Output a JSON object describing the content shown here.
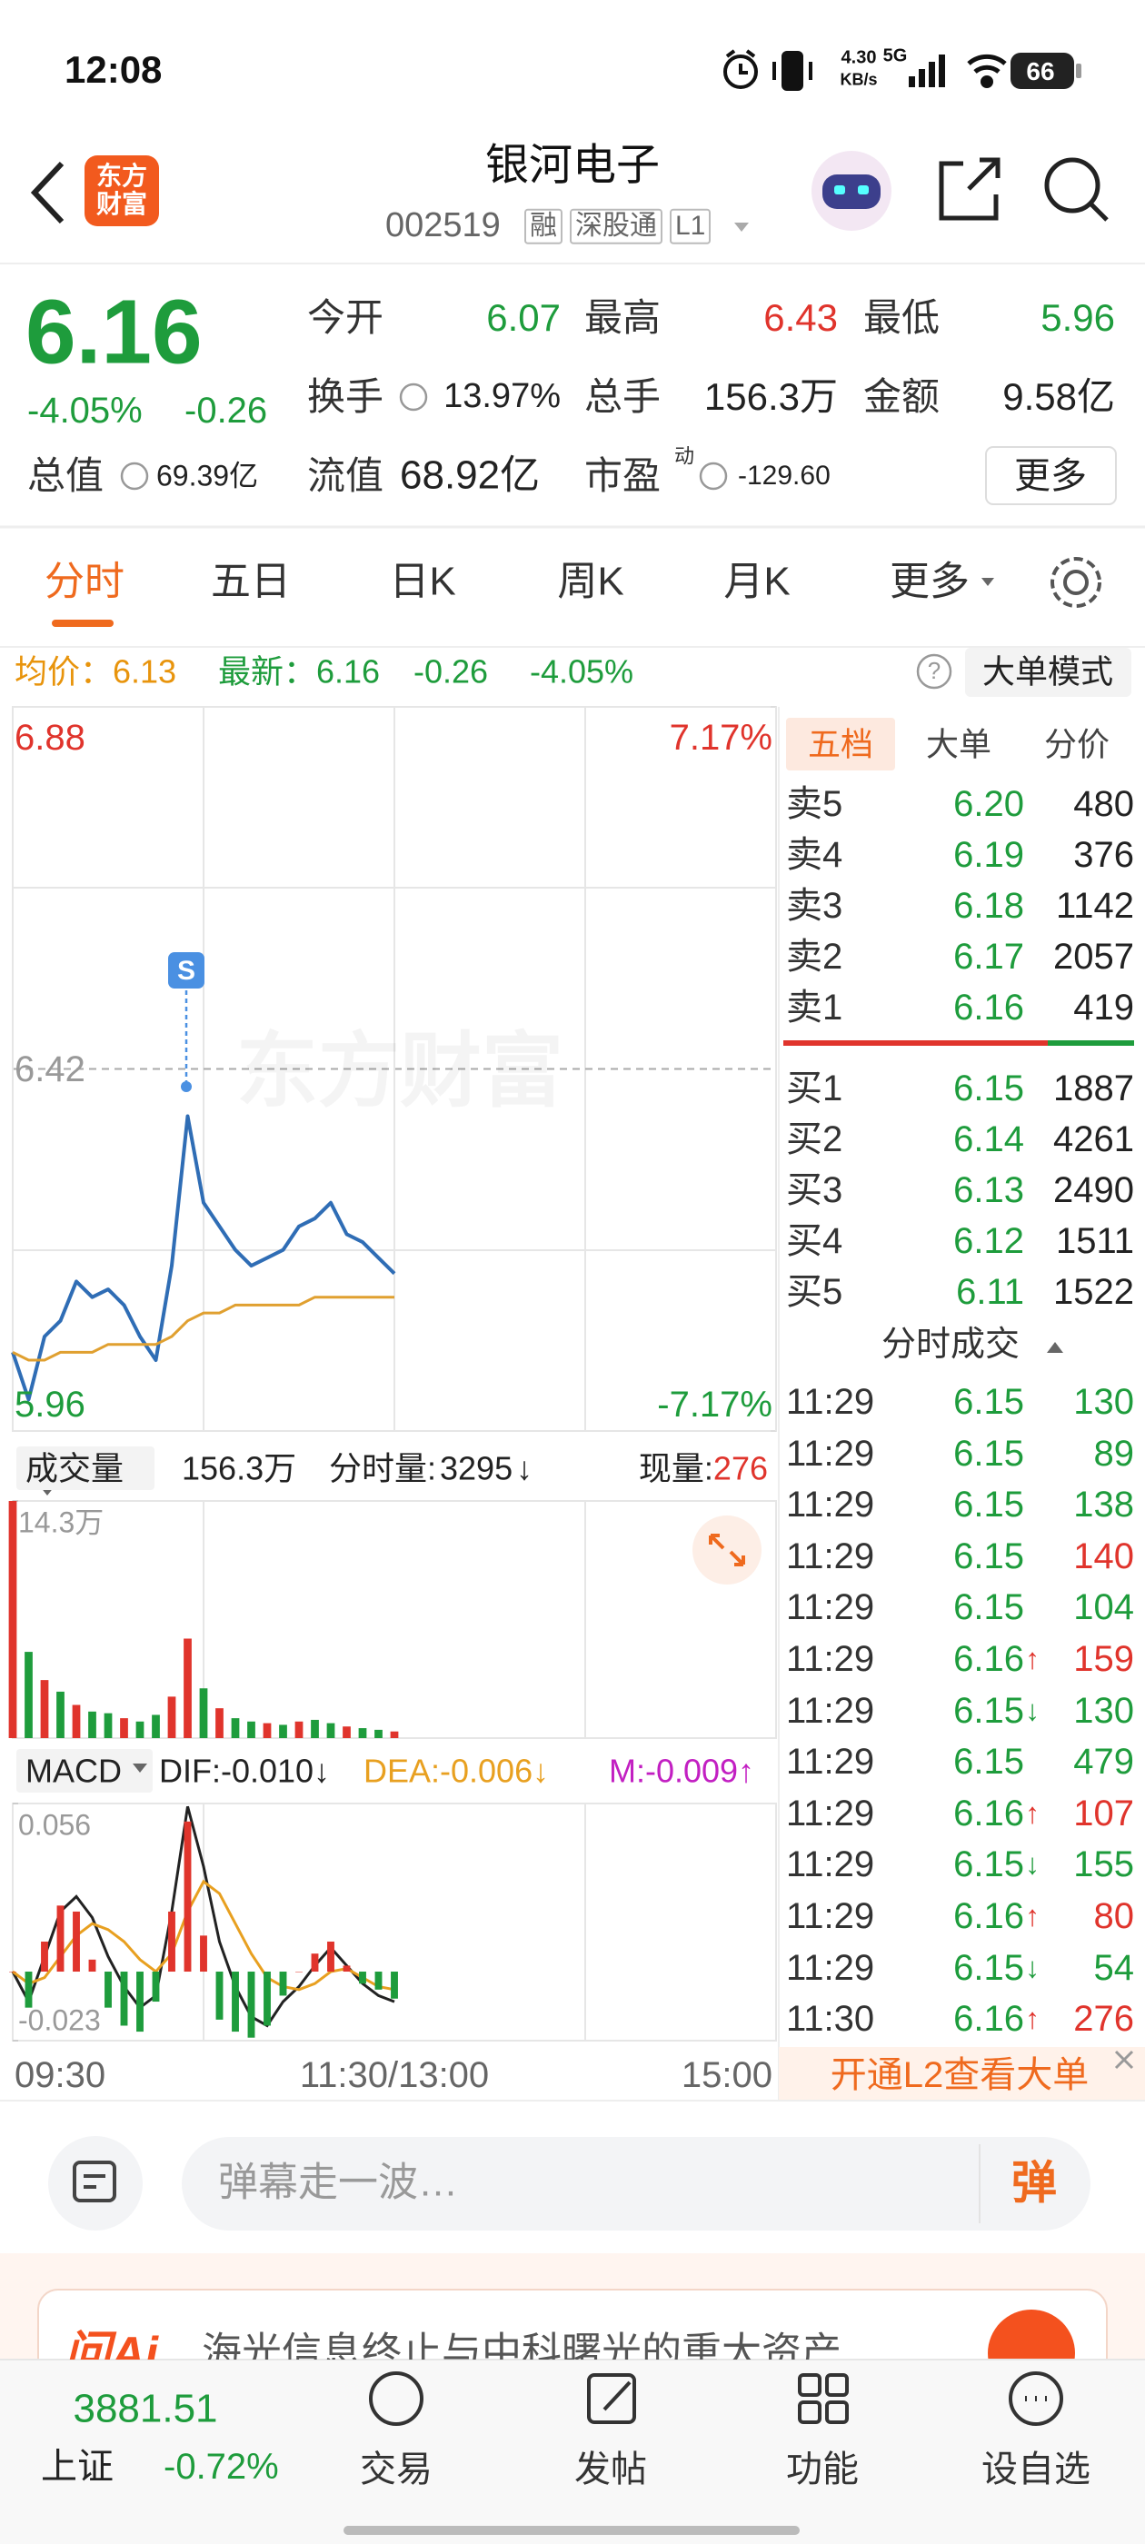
{
  "status_bar": {
    "time": "12:08",
    "speed": "4.30",
    "speed_unit": "KB/s",
    "network": "5G",
    "battery": "66"
  },
  "header": {
    "logo": "东方财富",
    "title": "银河电子",
    "code": "002519",
    "tags": [
      "融",
      "深股通",
      "L1"
    ]
  },
  "quote": {
    "price": "6.16",
    "change_pct": "-4.05%",
    "change": "-0.26",
    "open": {
      "label": "今开",
      "value": "6.07"
    },
    "high": {
      "label": "最高",
      "value": "6.43"
    },
    "low": {
      "label": "最低",
      "value": "5.96"
    },
    "turnover": {
      "label": "换手",
      "value": "13.97%"
    },
    "volume": {
      "label": "总手",
      "value": "156.3万"
    },
    "amount": {
      "label": "金额",
      "value": "9.58亿"
    },
    "market_cap": {
      "label": "总值",
      "value": "69.39亿"
    },
    "float_cap": {
      "label": "流值",
      "value": "68.92亿"
    },
    "pe": {
      "label": "市盈",
      "sup": "动",
      "value": "-129.60"
    },
    "more": "更多"
  },
  "tabs": [
    "分时",
    "五日",
    "日K",
    "周K",
    "月K",
    "更多"
  ],
  "info_bar": {
    "avg_label": "均价：",
    "avg": "6.13",
    "latest_label": "最新：",
    "latest": "6.16",
    "change": "-0.26",
    "change_pct": "-4.05%",
    "help": "?",
    "mode": "大单模式"
  },
  "chart_data": [
    {
      "type": "line",
      "watermark": "东方财富",
      "signal_marker": "S",
      "xlim": [
        0,
        48
      ],
      "xticks": [
        {
          "value": 0,
          "label": "09:30"
        },
        {
          "value": 24,
          "label": "11:30/13:00"
        },
        {
          "value": 48,
          "label": "15:00"
        }
      ],
      "ylim": [
        5.96,
        6.88
      ],
      "yticks": [
        6.88,
        6.42,
        5.96
      ],
      "y2lim": [
        -7.17,
        7.17
      ],
      "y2ticks": [
        {
          "value": 7.17,
          "label": "7.17%"
        },
        {
          "value": -7.17,
          "label": "-7.17%"
        }
      ],
      "up_color": "#e0342c",
      "down_color": "#1e9c3c",
      "series": [
        {
          "color": "#2f6db5",
          "values": [
            6.06,
            6.0,
            6.08,
            6.1,
            6.15,
            6.13,
            6.14,
            6.12,
            6.08,
            6.05,
            6.17,
            6.36,
            6.25,
            6.22,
            6.19,
            6.17,
            6.18,
            6.19,
            6.22,
            6.23,
            6.25,
            6.21,
            6.2,
            6.18,
            6.16,
            null,
            null,
            null,
            null,
            null,
            null,
            null,
            null,
            null,
            null,
            null,
            null,
            null,
            null,
            null,
            null,
            null,
            null,
            null,
            null,
            null,
            null,
            null,
            null
          ]
        },
        {
          "color": "#e0a030",
          "values": [
            6.06,
            6.05,
            6.05,
            6.06,
            6.06,
            6.06,
            6.07,
            6.07,
            6.07,
            6.07,
            6.08,
            6.1,
            6.11,
            6.11,
            6.12,
            6.12,
            6.12,
            6.12,
            6.12,
            6.13,
            6.13,
            6.13,
            6.13,
            6.13,
            6.13,
            null,
            null,
            null,
            null,
            null,
            null,
            null,
            null,
            null,
            null,
            null,
            null,
            null,
            null,
            null,
            null,
            null,
            null,
            null,
            null,
            null,
            null,
            null,
            null
          ]
        }
      ]
    },
    {
      "type": "bar",
      "title": "成交量",
      "total": "156.3万",
      "period_label": "分时量:",
      "period": "3295",
      "period_arrow": "↓",
      "current_label": "现量:",
      "current": "276",
      "ylim": [
        0,
        14.3
      ],
      "yticks": [
        {
          "value": 14.3,
          "label": "14.3万"
        }
      ],
      "values": [
        14.3,
        5.2,
        3.5,
        2.8,
        2.0,
        1.6,
        1.5,
        1.2,
        1.0,
        1.4,
        2.5,
        6.0,
        3.0,
        1.8,
        1.2,
        1.0,
        0.9,
        0.8,
        1.0,
        1.1,
        0.9,
        0.7,
        0.6,
        0.5,
        0.4
      ],
      "colors": [
        "#e0342c",
        "#1e9c3c",
        "#e0342c",
        "#1e9c3c",
        "#e0342c",
        "#1e9c3c",
        "#1e9c3c",
        "#e0342c",
        "#1e9c3c",
        "#1e9c3c",
        "#e0342c",
        "#e0342c",
        "#1e9c3c",
        "#e0342c",
        "#1e9c3c",
        "#1e9c3c",
        "#e0342c",
        "#1e9c3c",
        "#e0342c",
        "#1e9c3c",
        "#1e9c3c",
        "#e0342c",
        "#1e9c3c",
        "#1e9c3c",
        "#e0342c"
      ]
    },
    {
      "type": "macd",
      "title": "MACD",
      "ylim": [
        -0.023,
        0.056
      ],
      "yticks": [
        0.056,
        -0.023
      ],
      "series": [
        {
          "name": "DIF:-0.010↓",
          "color": "#222222",
          "values": [
            0.0,
            -0.01,
            0.005,
            0.02,
            0.025,
            0.018,
            0.005,
            -0.005,
            -0.012,
            -0.008,
            0.02,
            0.055,
            0.035,
            0.01,
            -0.005,
            -0.015,
            -0.018,
            -0.01,
            -0.005,
            0.002,
            0.008,
            0.002,
            -0.004,
            -0.008,
            -0.01
          ]
        },
        {
          "name": "DEA:-0.006↓",
          "color": "#e8a020",
          "values": [
            0.0,
            -0.004,
            -0.002,
            0.005,
            0.012,
            0.016,
            0.014,
            0.01,
            0.004,
            0.0,
            0.006,
            0.02,
            0.03,
            0.026,
            0.016,
            0.006,
            -0.002,
            -0.005,
            -0.006,
            -0.004,
            0.0,
            0.001,
            -0.002,
            -0.005,
            -0.006
          ]
        },
        {
          "name": "M:-0.009↑",
          "color": "#c21fc2",
          "up_color": "#e0342c",
          "down_color": "#1e9c3c",
          "values": [
            0.0,
            -0.012,
            0.01,
            0.022,
            0.02,
            0.004,
            -0.012,
            -0.018,
            -0.02,
            -0.01,
            0.02,
            0.05,
            0.012,
            -0.016,
            -0.02,
            -0.022,
            -0.018,
            -0.008,
            0.0,
            0.006,
            0.01,
            0.002,
            -0.004,
            -0.006,
            -0.009
          ]
        }
      ]
    }
  ],
  "order_book": {
    "tabs": [
      "五档",
      "大单",
      "分价"
    ],
    "price_color": "#1e9c3c",
    "asks": [
      {
        "label": "卖5",
        "price": "6.20",
        "volume": "480"
      },
      {
        "label": "卖4",
        "price": "6.19",
        "volume": "376"
      },
      {
        "label": "卖3",
        "price": "6.18",
        "volume": "1142"
      },
      {
        "label": "卖2",
        "price": "6.17",
        "volume": "2057"
      },
      {
        "label": "卖1",
        "price": "6.16",
        "volume": "419"
      }
    ],
    "bids": [
      {
        "label": "买1",
        "price": "6.15",
        "volume": "1887"
      },
      {
        "label": "买2",
        "price": "6.14",
        "volume": "4261"
      },
      {
        "label": "买3",
        "price": "6.13",
        "volume": "2490"
      },
      {
        "label": "买4",
        "price": "6.12",
        "volume": "1511"
      },
      {
        "label": "买5",
        "price": "6.11",
        "volume": "1522"
      }
    ]
  },
  "trades": {
    "title": "分时成交",
    "price_color": "#1e9c3c",
    "rows": [
      {
        "time": "11:29",
        "price": "6.15",
        "volume": "130",
        "color": "#1e9c3c"
      },
      {
        "time": "11:29",
        "price": "6.15",
        "volume": "89",
        "color": "#1e9c3c"
      },
      {
        "time": "11:29",
        "price": "6.15",
        "volume": "138",
        "color": "#1e9c3c"
      },
      {
        "time": "11:29",
        "price": "6.15",
        "volume": "140",
        "color": "#e0342c"
      },
      {
        "time": "11:29",
        "price": "6.15",
        "volume": "104",
        "color": "#1e9c3c"
      },
      {
        "time": "11:29",
        "price": "6.16",
        "arrow": "↑",
        "arrow_color": "#e0342c",
        "volume": "159",
        "color": "#e0342c"
      },
      {
        "time": "11:29",
        "price": "6.15",
        "arrow": "↓",
        "arrow_color": "#1e9c3c",
        "volume": "130",
        "color": "#1e9c3c"
      },
      {
        "time": "11:29",
        "price": "6.15",
        "volume": "479",
        "color": "#1e9c3c"
      },
      {
        "time": "11:29",
        "price": "6.16",
        "arrow": "↑",
        "arrow_color": "#e0342c",
        "volume": "107",
        "color": "#e0342c"
      },
      {
        "time": "11:29",
        "price": "6.15",
        "arrow": "↓",
        "arrow_color": "#1e9c3c",
        "volume": "155",
        "color": "#1e9c3c"
      },
      {
        "time": "11:29",
        "price": "6.16",
        "arrow": "↑",
        "arrow_color": "#e0342c",
        "volume": "80",
        "color": "#e0342c"
      },
      {
        "time": "11:29",
        "price": "6.15",
        "arrow": "↓",
        "arrow_color": "#1e9c3c",
        "volume": "54",
        "color": "#1e9c3c"
      },
      {
        "time": "11:30",
        "price": "6.16",
        "arrow": "↑",
        "arrow_color": "#e0342c",
        "volume": "276",
        "color": "#e0342c"
      }
    ]
  },
  "l2_banner": "开通L2查看大单",
  "comment": {
    "placeholder": "弹幕走一波…",
    "button": "弹"
  },
  "ad": {
    "brand": "问Ai",
    "text": "海光信息终止与中科曙光的重大资产…"
  },
  "bottom_nav": {
    "index_value": "3881.51",
    "index_name": "上证",
    "index_change": "-0.72%",
    "items": [
      "交易",
      "发帖",
      "功能",
      "设自选"
    ]
  }
}
